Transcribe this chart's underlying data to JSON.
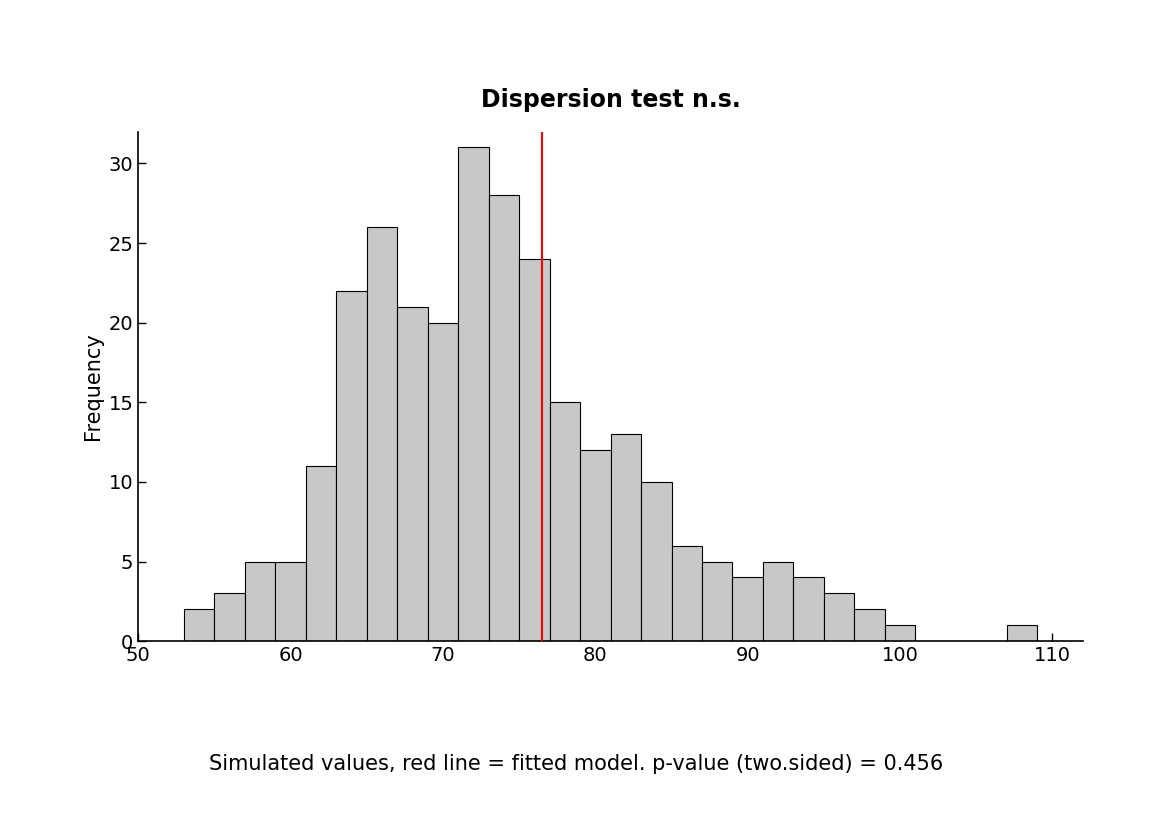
{
  "title": "Dispersion test n.s.",
  "xlabel": "Simulated values, red line = fitted model. p-value (two.sided) = 0.456",
  "ylabel": "Frequency",
  "bar_color": "#c8c8c8",
  "bar_edgecolor": "#000000",
  "red_line_x": 76.5,
  "xlim": [
    50,
    112
  ],
  "ylim": [
    0,
    32
  ],
  "xticks": [
    50,
    60,
    70,
    80,
    90,
    100,
    110
  ],
  "yticks": [
    0,
    5,
    10,
    15,
    20,
    25,
    30
  ],
  "bin_left": [
    53,
    55,
    57,
    59,
    61,
    63,
    65,
    67,
    69,
    71,
    73,
    75,
    77,
    79,
    81,
    83,
    85,
    87,
    89,
    91,
    93,
    95,
    97,
    99,
    107,
    109
  ],
  "bin_right": [
    55,
    57,
    59,
    61,
    63,
    65,
    67,
    69,
    71,
    73,
    75,
    77,
    79,
    81,
    83,
    85,
    87,
    89,
    91,
    93,
    95,
    97,
    99,
    101,
    109,
    111
  ],
  "frequencies": [
    2,
    3,
    5,
    5,
    11,
    22,
    26,
    21,
    20,
    31,
    28,
    24,
    15,
    12,
    13,
    10,
    6,
    5,
    4,
    5,
    4,
    3,
    2,
    1,
    1,
    0
  ],
  "title_fontsize": 17,
  "label_fontsize": 15,
  "tick_fontsize": 14,
  "background_color": "#ffffff",
  "fig_background_color": "#ffffff"
}
